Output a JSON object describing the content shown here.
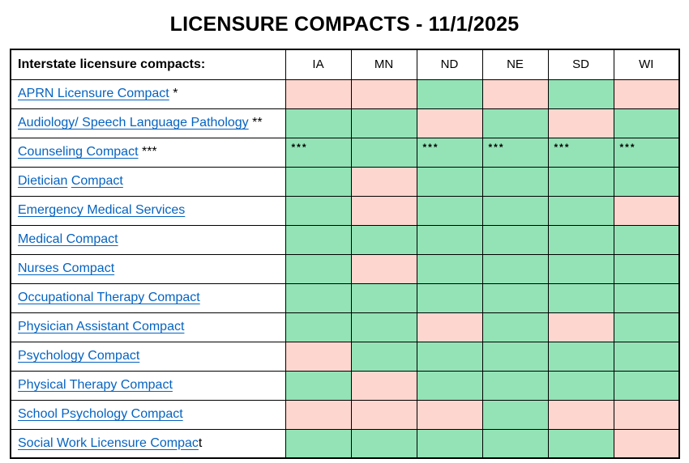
{
  "title": "LICENSURE COMPACTS - 11/1/2025",
  "colors": {
    "green": "#93E3B6",
    "pink": "#FCD6CF",
    "link": "#0563C1"
  },
  "table": {
    "corner_label": "Interstate licensure compacts:",
    "states": [
      "IA",
      "MN",
      "ND",
      "NE",
      "SD",
      "WI"
    ],
    "rows": [
      {
        "id": "aprn-licensure-compact",
        "label_parts": [
          {
            "text": "APRN Licensure Compact",
            "link": true
          },
          {
            "text": " *",
            "link": false
          }
        ],
        "cells": [
          {
            "status": "no"
          },
          {
            "status": "no"
          },
          {
            "status": "yes"
          },
          {
            "status": "no"
          },
          {
            "status": "yes"
          },
          {
            "status": "no"
          }
        ]
      },
      {
        "id": "audiology-speech-language-pathology",
        "label_parts": [
          {
            "text": "Audiology/ Speech Language Pathology",
            "link": true
          },
          {
            "text": " **",
            "link": false
          }
        ],
        "cells": [
          {
            "status": "yes"
          },
          {
            "status": "yes"
          },
          {
            "status": "no"
          },
          {
            "status": "yes"
          },
          {
            "status": "no"
          },
          {
            "status": "yes"
          }
        ]
      },
      {
        "id": "counseling-compact",
        "label_parts": [
          {
            "text": "Counseling Compact",
            "link": true
          },
          {
            "text": " ***",
            "link": false
          }
        ],
        "cells": [
          {
            "status": "yes",
            "text": "***"
          },
          {
            "status": "yes"
          },
          {
            "status": "yes",
            "text": "***"
          },
          {
            "status": "yes",
            "text": "***"
          },
          {
            "status": "yes",
            "text": "***"
          },
          {
            "status": "yes",
            "text": "***"
          }
        ]
      },
      {
        "id": "dietician-compact",
        "label_parts": [
          {
            "text": "Dietician",
            "link": true
          },
          {
            "text": " ",
            "link": false
          },
          {
            "text": "Compact",
            "link": true
          }
        ],
        "cells": [
          {
            "status": "yes"
          },
          {
            "status": "no"
          },
          {
            "status": "yes"
          },
          {
            "status": "yes"
          },
          {
            "status": "yes"
          },
          {
            "status": "yes"
          }
        ]
      },
      {
        "id": "emergency-medical-services",
        "label_parts": [
          {
            "text": "Emergency Medical Services",
            "link": true
          }
        ],
        "cells": [
          {
            "status": "yes"
          },
          {
            "status": "no"
          },
          {
            "status": "yes"
          },
          {
            "status": "yes"
          },
          {
            "status": "yes"
          },
          {
            "status": "no"
          }
        ]
      },
      {
        "id": "medical-compact",
        "label_parts": [
          {
            "text": "Medical Compact",
            "link": true
          }
        ],
        "cells": [
          {
            "status": "yes"
          },
          {
            "status": "yes"
          },
          {
            "status": "yes"
          },
          {
            "status": "yes"
          },
          {
            "status": "yes"
          },
          {
            "status": "yes"
          }
        ]
      },
      {
        "id": "nurses-compact",
        "label_parts": [
          {
            "text": "Nurses Compact",
            "link": true
          }
        ],
        "cells": [
          {
            "status": "yes"
          },
          {
            "status": "no"
          },
          {
            "status": "yes"
          },
          {
            "status": "yes"
          },
          {
            "status": "yes"
          },
          {
            "status": "yes"
          }
        ]
      },
      {
        "id": "occupational-therapy-compact",
        "label_parts": [
          {
            "text": "Occupational Therapy Compact",
            "link": true
          }
        ],
        "cells": [
          {
            "status": "yes"
          },
          {
            "status": "yes"
          },
          {
            "status": "yes"
          },
          {
            "status": "yes"
          },
          {
            "status": "yes"
          },
          {
            "status": "yes"
          }
        ]
      },
      {
        "id": "physician-assistant-compact",
        "label_parts": [
          {
            "text": "Physician Assistant Compact",
            "link": true
          }
        ],
        "cells": [
          {
            "status": "yes"
          },
          {
            "status": "yes"
          },
          {
            "status": "no"
          },
          {
            "status": "yes"
          },
          {
            "status": "no"
          },
          {
            "status": "yes"
          }
        ]
      },
      {
        "id": "psychology-compact",
        "label_parts": [
          {
            "text": "Psychology Compact",
            "link": true
          }
        ],
        "cells": [
          {
            "status": "no"
          },
          {
            "status": "yes"
          },
          {
            "status": "yes"
          },
          {
            "status": "yes"
          },
          {
            "status": "yes"
          },
          {
            "status": "yes"
          }
        ]
      },
      {
        "id": "physical-therapy-compact",
        "label_parts": [
          {
            "text": "Physical Therapy Compact",
            "link": true
          }
        ],
        "cells": [
          {
            "status": "yes"
          },
          {
            "status": "no"
          },
          {
            "status": "yes"
          },
          {
            "status": "yes"
          },
          {
            "status": "yes"
          },
          {
            "status": "yes"
          }
        ]
      },
      {
        "id": "school-psychology-compact",
        "label_parts": [
          {
            "text": "School Psychology Compact",
            "link": true
          }
        ],
        "cells": [
          {
            "status": "no"
          },
          {
            "status": "no"
          },
          {
            "status": "no"
          },
          {
            "status": "yes"
          },
          {
            "status": "no"
          },
          {
            "status": "no"
          }
        ]
      },
      {
        "id": "social-work-licensure-compact",
        "label_parts": [
          {
            "text": "Social Work Licensure Compac",
            "link": true
          },
          {
            "text": "t",
            "link": false
          }
        ],
        "cells": [
          {
            "status": "yes"
          },
          {
            "status": "yes"
          },
          {
            "status": "yes"
          },
          {
            "status": "yes"
          },
          {
            "status": "yes"
          },
          {
            "status": "no"
          }
        ]
      }
    ]
  }
}
